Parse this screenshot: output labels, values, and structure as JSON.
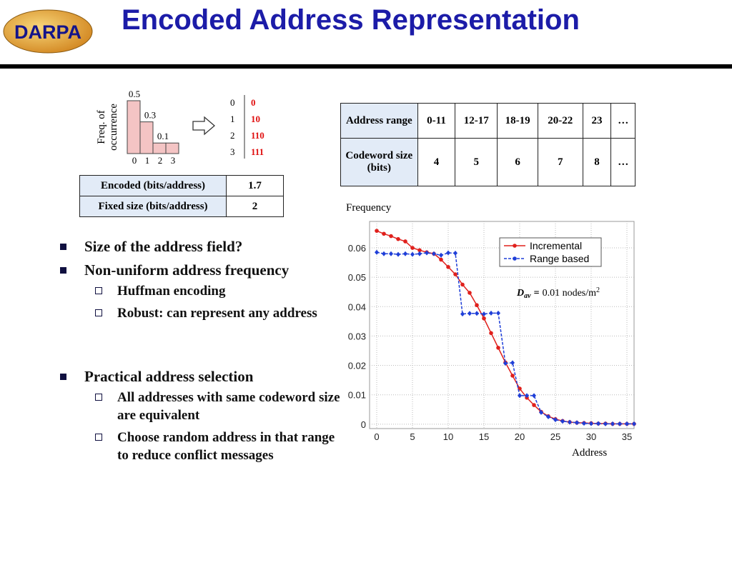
{
  "header": {
    "logo": "DARPA",
    "title": "Encoded Address Representation"
  },
  "histogram": {
    "type": "bar",
    "ylabel": [
      "Freq. of",
      "occurrence"
    ],
    "categories": [
      "0",
      "1",
      "2",
      "3"
    ],
    "values": [
      0.5,
      0.3,
      0.1,
      0.1
    ],
    "value_labels": [
      "0.5",
      "0.3",
      "0.1",
      null
    ],
    "color": "#f4c4c4"
  },
  "codes": {
    "symbols": [
      "0",
      "1",
      "2",
      "3"
    ],
    "codewords": [
      "0",
      "10",
      "110",
      "111"
    ]
  },
  "bits_table": {
    "rows": [
      [
        "Encoded (bits/address)",
        "1.7"
      ],
      [
        "Fixed size (bits/address)",
        "2"
      ]
    ]
  },
  "range_table": {
    "rows": [
      [
        "Address range",
        "0-11",
        "12-17",
        "18-19",
        "20-22",
        "23",
        "…"
      ],
      [
        "Codeword size (bits)",
        4,
        5,
        6,
        7,
        8,
        "…"
      ]
    ]
  },
  "bullets": [
    {
      "text": "Size of the address field?",
      "sub": []
    },
    {
      "text": "Non-uniform address frequency",
      "sub": [
        "Huffman encoding",
        "Robust: can represent any address"
      ]
    },
    {
      "text": "Practical address selection",
      "sub": [
        "All addresses with same codeword size are equivalent",
        "Choose random address in that range to reduce conflict messages"
      ]
    }
  ],
  "chart_data": {
    "type": "line",
    "ylabel": "Frequency",
    "xlabel": "Address",
    "annotation": {
      "symbol": "D",
      "subscript": "av",
      "equals": "=",
      "value": "0.01 nodes/m",
      "superscript": "2"
    },
    "x": [
      0,
      1,
      2,
      3,
      4,
      5,
      6,
      7,
      8,
      9,
      10,
      11,
      12,
      13,
      14,
      15,
      16,
      17,
      18,
      19,
      20,
      21,
      22,
      23,
      24,
      25,
      26,
      27,
      28,
      29,
      30,
      31,
      32,
      33,
      34,
      35,
      36
    ],
    "series": [
      {
        "name": "Incremental",
        "color": "#e0201c",
        "values": [
          0.0658,
          0.0648,
          0.064,
          0.063,
          0.0622,
          0.06,
          0.0592,
          0.0585,
          0.058,
          0.056,
          0.0535,
          0.051,
          0.0475,
          0.0447,
          0.0405,
          0.036,
          0.031,
          0.026,
          0.021,
          0.0165,
          0.0121,
          0.009,
          0.0065,
          0.0042,
          0.0027,
          0.0017,
          0.0011,
          0.0007,
          0.0005,
          0.0004,
          0.0003,
          0.0002,
          0.0002,
          0.0001,
          0.0001,
          0.0001,
          0.0001
        ]
      },
      {
        "name": "Range based",
        "color": "#1f3fd8",
        "values": [
          0.0585,
          0.058,
          0.058,
          0.0578,
          0.058,
          0.0578,
          0.058,
          0.0583,
          0.058,
          0.0575,
          0.0583,
          0.0582,
          0.0375,
          0.0377,
          0.0377,
          0.0375,
          0.0378,
          0.0378,
          0.0207,
          0.0209,
          0.0097,
          0.0097,
          0.0097,
          0.004,
          0.0025,
          0.0015,
          0.001,
          0.0007,
          0.0005,
          0.0003,
          0.0002,
          0.0002,
          0.0001,
          0.0001,
          0.0001,
          0.0001,
          0.0001
        ]
      }
    ],
    "xlim": [
      -1,
      36
    ],
    "ylim": [
      -0.0015,
      0.069
    ],
    "xticks": [
      0,
      5,
      10,
      15,
      20,
      25,
      30,
      35
    ],
    "yticks": [
      0,
      0.01,
      0.02,
      0.03,
      0.04,
      0.05,
      0.06
    ],
    "grid": true,
    "legend": "upper right"
  }
}
